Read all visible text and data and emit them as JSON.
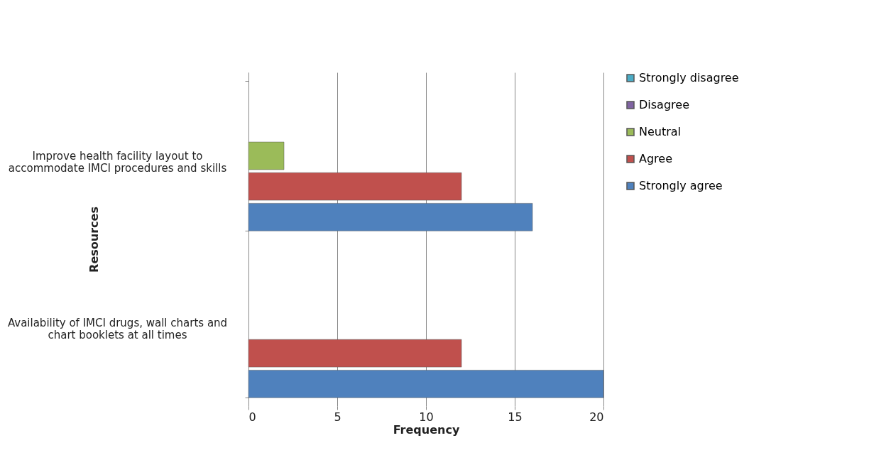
{
  "chart_data": {
    "type": "bar",
    "orientation": "horizontal",
    "categories": [
      "Improve health facility layout to accommodate IMCI procedures and skills",
      "Availability of IMCI drugs, wall charts and chart booklets at all times"
    ],
    "series": [
      {
        "name": "Strongly disagree",
        "color": "#4bacc6",
        "values": [
          null,
          null
        ]
      },
      {
        "name": "Disagree",
        "color": "#8064a2",
        "values": [
          null,
          null
        ]
      },
      {
        "name": "Neutral",
        "color": "#9bbb59",
        "values": [
          2,
          null
        ]
      },
      {
        "name": "Agree",
        "color": "#c0504d",
        "values": [
          12,
          12
        ]
      },
      {
        "name": "Strongly agree",
        "color": "#4f81bd",
        "values": [
          16,
          20
        ]
      }
    ],
    "xlabel": "Frequency",
    "ylabel": "Resources",
    "xlim": [
      0,
      20
    ],
    "xticks": [
      0,
      5,
      10,
      15,
      20
    ],
    "grid": "x",
    "legend": "right"
  }
}
